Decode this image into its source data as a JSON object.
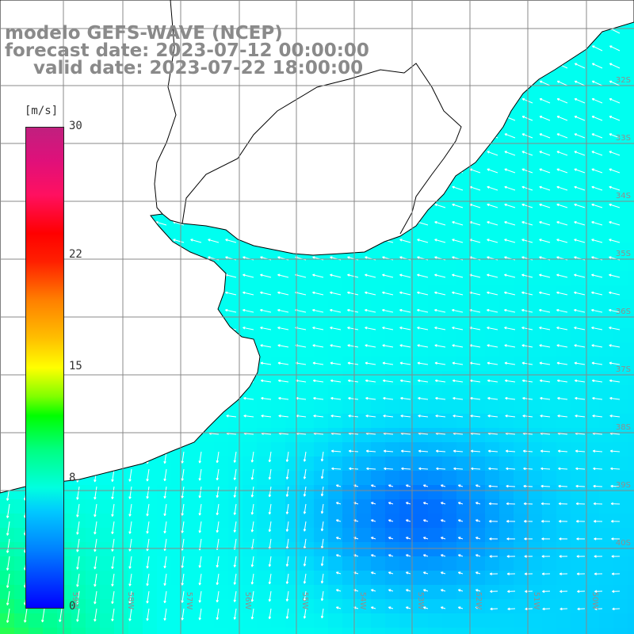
{
  "title": {
    "line1": "modelo GEFS-WAVE (NCEP)",
    "line2": "forecast date: 2023-07-12 00:00:00",
    "line3": "valid date: 2023-07-22 18:00:00"
  },
  "colorbar": {
    "unit": "[m/s]",
    "ticks": [
      "30",
      "22",
      "15",
      "8",
      "0"
    ],
    "tick_values": [
      30,
      22,
      15,
      8,
      0
    ],
    "min": 0,
    "max": 30
  },
  "axes": {
    "lat_labels": [
      "32S",
      "33S",
      "34S",
      "35S",
      "36S",
      "37S",
      "38S",
      "39S",
      "40S"
    ],
    "lon_labels": [
      "59W",
      "58W",
      "57W",
      "56W",
      "55W",
      "54W",
      "53W",
      "52W",
      "51W",
      "50W"
    ]
  },
  "colors": {
    "land": "#ffffff",
    "coast": "#000000",
    "grid": "#888888",
    "arrow": "#ffffff",
    "title": "#8a8a8a"
  }
}
